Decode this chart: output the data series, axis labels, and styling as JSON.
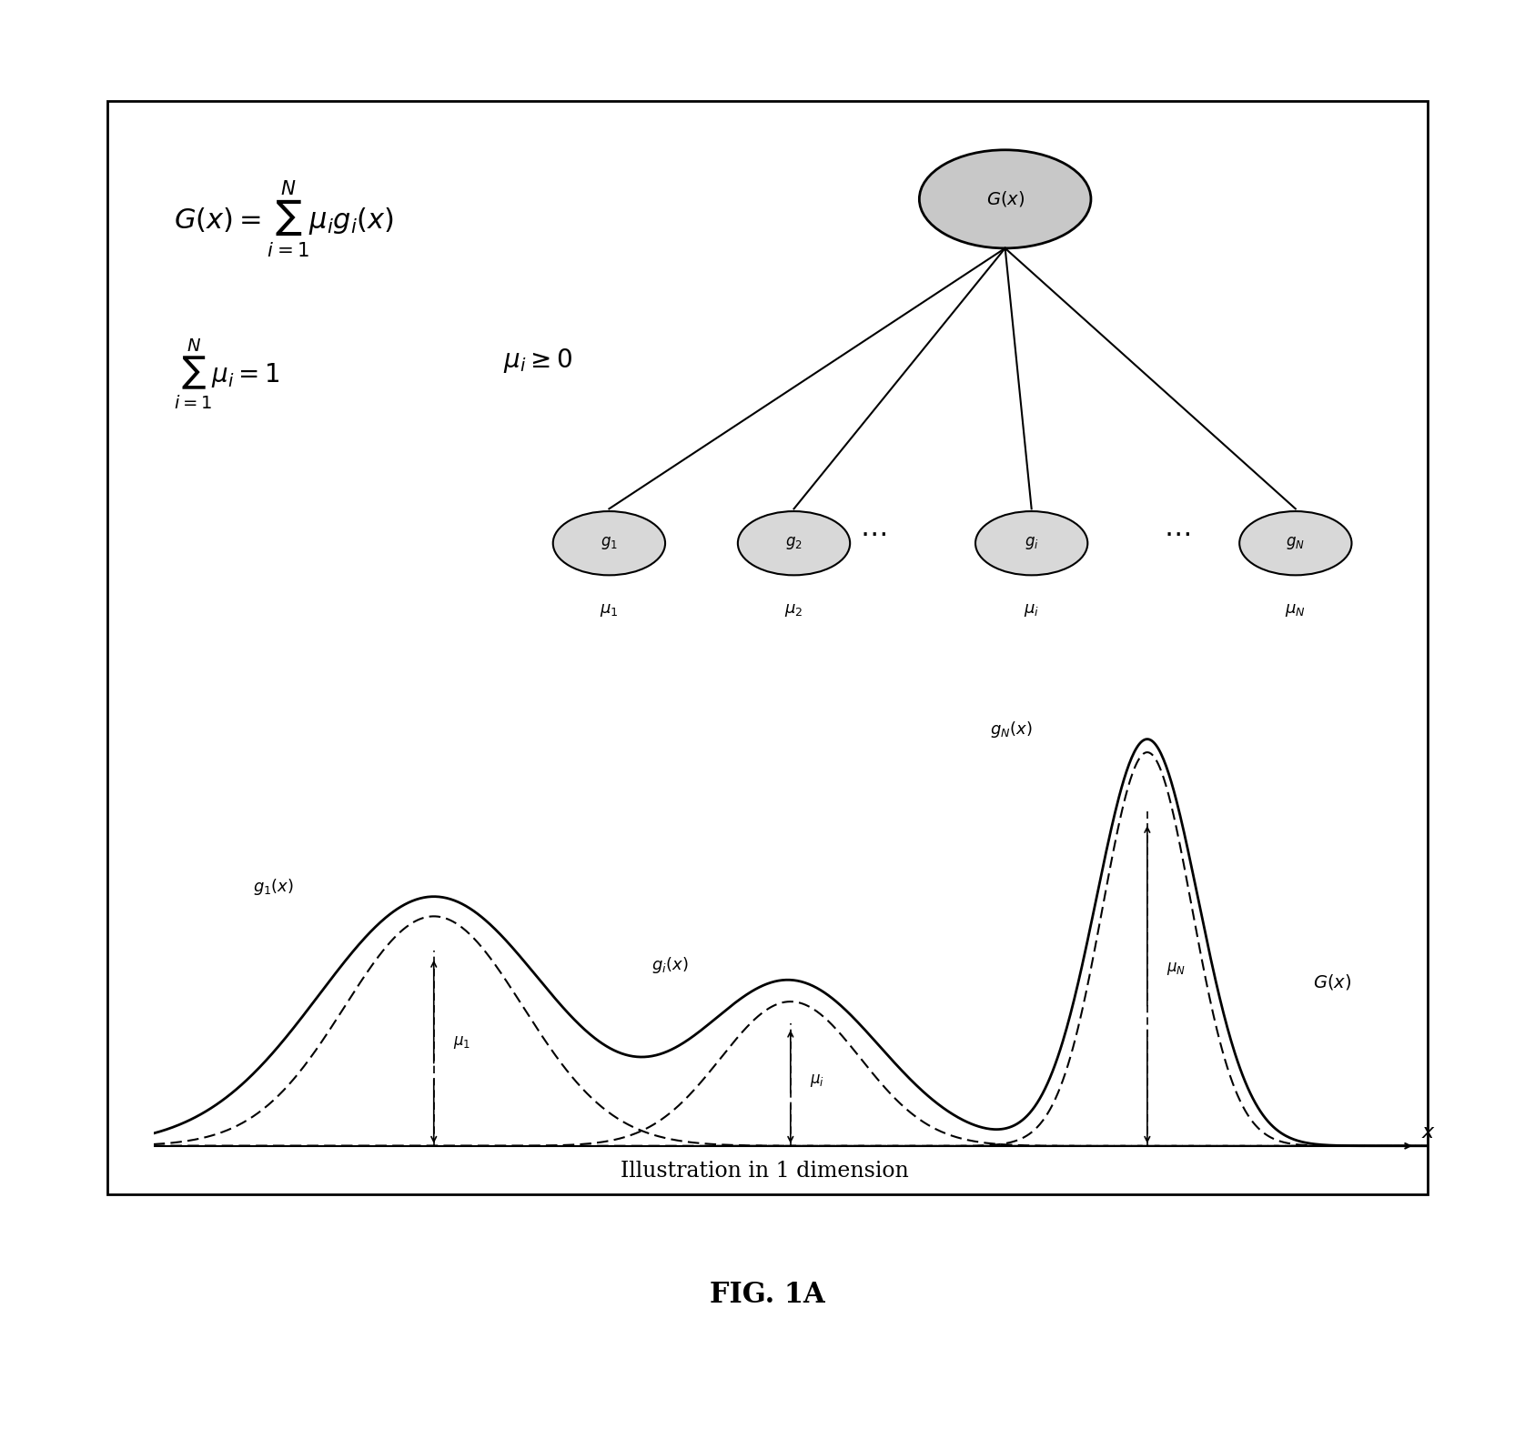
{
  "fig_width": 16.87,
  "fig_height": 15.82,
  "bg_color": "#ffffff",
  "border_color": "#000000",
  "title": "FIG. 1A",
  "title_fontsize": 22,
  "caption": "Illustration in 1 dimension",
  "caption_fontsize": 18,
  "formula1": "$G(x)=\\sum_{i=1}^{N}\\mu_i g_i(x)$",
  "formula2": "$\\sum_{i=1}^{N}\\mu_i=1 \\quad \\mu_i\\geq 0$",
  "node_labels": [
    "$g_1$",
    "$g_2$",
    "$g_i$",
    "$g_N$"
  ],
  "mu_labels": [
    "$\\mu_1$",
    "$\\mu_2$",
    "$\\mu_i$",
    "$\\mu_N$"
  ],
  "Gx_label": "$G(x)$",
  "annotation_color": "#000000",
  "curve_color": "#000000",
  "dashed_color": "#000000"
}
